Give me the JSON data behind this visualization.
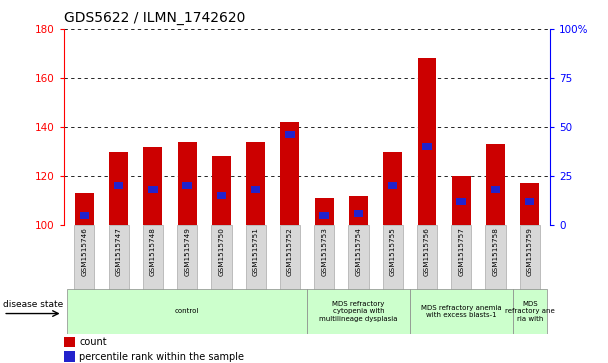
{
  "title": "GDS5622 / ILMN_1742620",
  "samples": [
    "GSM1515746",
    "GSM1515747",
    "GSM1515748",
    "GSM1515749",
    "GSM1515750",
    "GSM1515751",
    "GSM1515752",
    "GSM1515753",
    "GSM1515754",
    "GSM1515755",
    "GSM1515756",
    "GSM1515757",
    "GSM1515758",
    "GSM1515759"
  ],
  "counts": [
    113,
    130,
    132,
    134,
    128,
    134,
    142,
    111,
    112,
    130,
    168,
    120,
    133,
    117
  ],
  "percentile_ranks": [
    5,
    20,
    18,
    20,
    15,
    18,
    46,
    5,
    6,
    20,
    40,
    12,
    18,
    12
  ],
  "ylim_left": [
    100,
    180
  ],
  "ylim_right": [
    0,
    100
  ],
  "yticks_left": [
    100,
    120,
    140,
    160,
    180
  ],
  "yticks_right": [
    0,
    25,
    50,
    75,
    100
  ],
  "bar_color": "#cc0000",
  "blue_color": "#2222cc",
  "bar_width": 0.55,
  "disease_groups": [
    {
      "label": "control",
      "start": 0,
      "end": 6,
      "color": "#ccffcc"
    },
    {
      "label": "MDS refractory\ncytopenia with\nmultilineage dysplasia",
      "start": 7,
      "end": 9,
      "color": "#ccffcc"
    },
    {
      "label": "MDS refractory anemia\nwith excess blasts-1",
      "start": 10,
      "end": 12,
      "color": "#ccffcc"
    },
    {
      "label": "MDS\nrefractory ane\nria with",
      "start": 13,
      "end": 13,
      "color": "#ccffcc"
    }
  ],
  "legend_count_label": "count",
  "legend_pct_label": "percentile rank within the sample",
  "disease_state_label": "disease state",
  "background_color": "#ffffff"
}
